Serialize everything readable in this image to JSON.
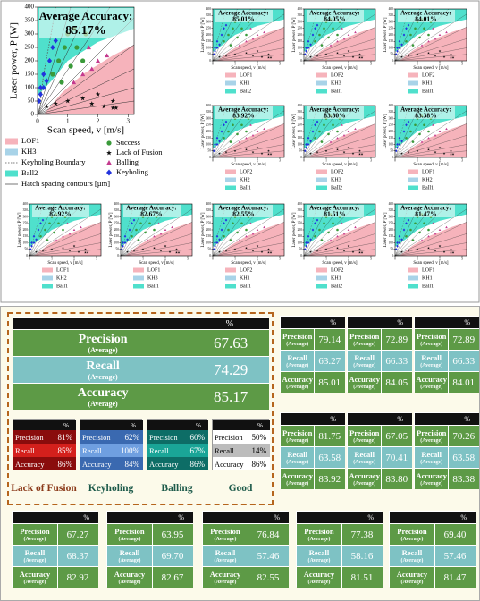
{
  "process_maps": {
    "main": {
      "title": "Average Accuracy:",
      "accuracy": "85.17%",
      "x_label": "Scan speed, v [m/s]",
      "y_label": "Laser power, P [W]",
      "xlim": [
        0,
        3.2
      ],
      "ylim": [
        0,
        400
      ],
      "xticks": [
        0,
        1,
        2,
        3
      ],
      "yticks": [
        0,
        50,
        100,
        150,
        200,
        250,
        300,
        350,
        400
      ]
    },
    "legend_regions": [
      "LOF1",
      "KH3",
      "Keyholing Boundary",
      "Ball2",
      "Hatch spacing contours [µm]"
    ],
    "legend_markers": [
      "Success",
      "Lack of Fusion",
      "Balling",
      "Keyholing"
    ],
    "points": {
      "success": [
        [
          0.5,
          150
        ],
        [
          0.7,
          200
        ],
        [
          0.9,
          250
        ],
        [
          1.0,
          300
        ],
        [
          1.2,
          320
        ],
        [
          0.8,
          120
        ],
        [
          1.1,
          180
        ],
        [
          1.3,
          250
        ],
        [
          1.5,
          200
        ],
        [
          1.6,
          300
        ]
      ],
      "lack_of_fusion": [
        [
          0.3,
          30
        ],
        [
          0.6,
          40
        ],
        [
          1.0,
          50
        ],
        [
          1.5,
          60
        ],
        [
          2.0,
          75
        ],
        [
          2.5,
          50
        ],
        [
          2.5,
          25
        ],
        [
          2.2,
          30
        ],
        [
          2.6,
          25
        ],
        [
          1.8,
          40
        ]
      ],
      "balling": [
        [
          1.2,
          120
        ],
        [
          1.5,
          150
        ],
        [
          1.8,
          170
        ],
        [
          2.0,
          200
        ],
        [
          2.3,
          220
        ],
        [
          1.7,
          250
        ]
      ],
      "keyholing": [
        [
          0.05,
          50
        ],
        [
          0.1,
          75
        ],
        [
          0.1,
          100
        ],
        [
          0.2,
          100
        ],
        [
          0.3,
          125
        ],
        [
          0.2,
          150
        ],
        [
          0.4,
          200
        ],
        [
          0.5,
          250
        ],
        [
          0.6,
          275
        ]
      ]
    },
    "maps": [
      {
        "accuracy": "85.01%",
        "legend": [
          "LOF1",
          "KH1",
          "Ball2"
        ]
      },
      {
        "accuracy": "84.05%",
        "legend": [
          "LOF2",
          "KH3",
          "Ball1"
        ]
      },
      {
        "accuracy": "84.01%",
        "legend": [
          "LOF2",
          "KH1",
          "Ball1"
        ]
      },
      {
        "accuracy": "83.92%",
        "legend": [
          "LOF2",
          "KH2",
          "Ball1"
        ]
      },
      {
        "accuracy": "83.80%",
        "legend": [
          "LOF2",
          "KH3",
          "Ball2"
        ]
      },
      {
        "accuracy": "83.38%",
        "legend": [
          "LOF1",
          "KH2",
          "Ball1"
        ]
      },
      {
        "accuracy": "82.92%",
        "legend": [
          "LOF1",
          "KH2",
          "Ball1"
        ]
      },
      {
        "accuracy": "82.67%",
        "legend": [
          "LOF1",
          "KH3",
          "Ball1"
        ]
      },
      {
        "accuracy": "82.55%",
        "legend": [
          "LOF2",
          "KH1",
          "Ball1"
        ]
      },
      {
        "accuracy": "81.51%",
        "legend": [
          "LOF2",
          "KH1",
          "Ball2"
        ]
      },
      {
        "accuracy": "81.47%",
        "legend": [
          "LOF1",
          "KH1",
          "Ball1"
        ]
      }
    ]
  },
  "metrics": {
    "average": {
      "header": "%",
      "rows": [
        {
          "label": "Precision",
          "sub": "(Average)",
          "value": "67.63"
        },
        {
          "label": "Recall",
          "sub": "(Average)",
          "value": "74.29"
        },
        {
          "label": "Accuracy",
          "sub": "(Average)",
          "value": "85.17"
        }
      ]
    },
    "classes": [
      {
        "name": "Lack of Fusion",
        "header": "%",
        "rows": [
          {
            "label": "Precision",
            "value": "81%"
          },
          {
            "label": "Recall",
            "value": "85%"
          },
          {
            "label": "Accuracy",
            "value": "86%"
          }
        ]
      },
      {
        "name": "Keyholing",
        "header": "%",
        "rows": [
          {
            "label": "Precision",
            "value": "62%"
          },
          {
            "label": "Recall",
            "value": "100%"
          },
          {
            "label": "Accuracy",
            "value": "84%"
          }
        ]
      },
      {
        "name": "Balling",
        "header": "%",
        "rows": [
          {
            "label": "Precision",
            "value": "60%"
          },
          {
            "label": "Recall",
            "value": "67%"
          },
          {
            "label": "Accuracy",
            "value": "86%"
          }
        ]
      },
      {
        "name": "Good",
        "header": "%",
        "rows": [
          {
            "label": "Precision",
            "value": "50%"
          },
          {
            "label": "Recall",
            "value": "14%"
          },
          {
            "label": "Accuracy",
            "value": "86%"
          }
        ]
      }
    ],
    "models": [
      {
        "header": "%",
        "rows": [
          {
            "label": "Precision",
            "sub": "(Average)",
            "value": "79.14"
          },
          {
            "label": "Recall",
            "sub": "(Average)",
            "value": "63.27"
          },
          {
            "label": "Accuracy",
            "sub": "(Average)",
            "value": "85.01"
          }
        ]
      },
      {
        "header": "%",
        "rows": [
          {
            "label": "Precision",
            "sub": "(Average)",
            "value": "72.89"
          },
          {
            "label": "Recall",
            "sub": "(Average)",
            "value": "66.33"
          },
          {
            "label": "Accuracy",
            "sub": "(Average)",
            "value": "84.05"
          }
        ]
      },
      {
        "header": "%",
        "rows": [
          {
            "label": "Precision",
            "sub": "(Average)",
            "value": "72.89"
          },
          {
            "label": "Recall",
            "sub": "(Average)",
            "value": "66.33"
          },
          {
            "label": "Accuracy",
            "sub": "(Average)",
            "value": "84.01"
          }
        ]
      },
      {
        "header": "%",
        "rows": [
          {
            "label": "Precision",
            "sub": "(Average)",
            "value": "81.75"
          },
          {
            "label": "Recall",
            "sub": "(Average)",
            "value": "63.58"
          },
          {
            "label": "Accuracy",
            "sub": "(Average)",
            "value": "83.92"
          }
        ]
      },
      {
        "header": "%",
        "rows": [
          {
            "label": "Precision",
            "sub": "(Average)",
            "value": "67.05"
          },
          {
            "label": "Recall",
            "sub": "(Average)",
            "value": "70.41"
          },
          {
            "label": "Accuracy",
            "sub": "(Average)",
            "value": "83.80"
          }
        ]
      },
      {
        "header": "%",
        "rows": [
          {
            "label": "Precision",
            "sub": "(Average)",
            "value": "70.26"
          },
          {
            "label": "Recall",
            "sub": "(Average)",
            "value": "63.58"
          },
          {
            "label": "Accuracy",
            "sub": "(Average)",
            "value": "83.38"
          }
        ]
      },
      {
        "header": "%",
        "rows": [
          {
            "label": "Precision",
            "sub": "(Average)",
            "value": "67.27"
          },
          {
            "label": "Recall",
            "sub": "(Average)",
            "value": "68.37"
          },
          {
            "label": "Accuracy",
            "sub": "(Average)",
            "value": "82.92"
          }
        ]
      },
      {
        "header": "%",
        "rows": [
          {
            "label": "Precision",
            "sub": "(Average)",
            "value": "63.95"
          },
          {
            "label": "Recall",
            "sub": "(Average)",
            "value": "69.70"
          },
          {
            "label": "Accuracy",
            "sub": "(Average)",
            "value": "82.67"
          }
        ]
      },
      {
        "header": "%",
        "rows": [
          {
            "label": "Precision",
            "sub": "(Average)",
            "value": "76.84"
          },
          {
            "label": "Recall",
            "sub": "(Average)",
            "value": "57.46"
          },
          {
            "label": "Accuracy",
            "sub": "(Average)",
            "value": "82.55"
          }
        ]
      },
      {
        "header": "%",
        "rows": [
          {
            "label": "Precision",
            "sub": "(Average)",
            "value": "77.38"
          },
          {
            "label": "Recall",
            "sub": "(Average)",
            "value": "58.16"
          },
          {
            "label": "Accuracy",
            "sub": "(Average)",
            "value": "81.51"
          }
        ]
      },
      {
        "header": "%",
        "rows": [
          {
            "label": "Precision",
            "sub": "(Average)",
            "value": "69.40"
          },
          {
            "label": "Recall",
            "sub": "(Average)",
            "value": "57.46"
          },
          {
            "label": "Accuracy",
            "sub": "(Average)",
            "value": "81.47"
          }
        ]
      }
    ]
  }
}
